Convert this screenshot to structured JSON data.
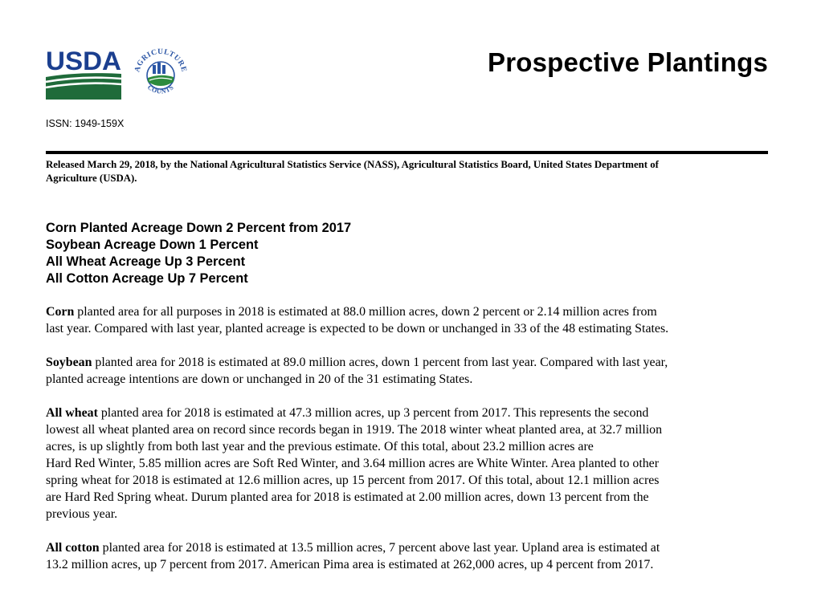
{
  "header": {
    "usda_logo_text": "USDA",
    "seal_text_top": "AGRICULTURE",
    "seal_text_bottom": "COUNTS",
    "title": "Prospective Plantings",
    "issn": "ISSN: 1949-159X"
  },
  "release": {
    "line1": "Released March 29, 2018, by the National Agricultural Statistics Service (NASS), Agricultural Statistics Board, United States Department of",
    "line2": "Agriculture (USDA)."
  },
  "headlines": [
    "Corn Planted Acreage Down 2 Percent from 2017",
    "Soybean Acreage Down 1 Percent",
    "All Wheat Acreage Up 3 Percent",
    "All Cotton Acreage Up 7 Percent"
  ],
  "paragraphs": {
    "corn": {
      "lead": "Corn",
      "line1": " planted area for all purposes in 2018 is estimated at 88.0 million acres, down 2 percent or 2.14 million acres from",
      "lines": [
        "last year. Compared with last year, planted acreage is expected to be down or unchanged in 33 of the 48 estimating States."
      ]
    },
    "soybean": {
      "lead": "Soybean",
      "line1": " planted area for 2018 is estimated at 89.0 million acres, down 1 percent from last year. Compared with last year,",
      "lines": [
        "planted acreage intentions are down or unchanged in 20 of the 31 estimating States."
      ]
    },
    "wheat": {
      "lead": "All wheat",
      "line1": " planted area for 2018 is estimated at 47.3 million acres, up 3 percent from 2017. This represents the second",
      "lines": [
        "lowest all wheat planted area on record since records began in 1919. The 2018 winter wheat planted area, at 32.7 million",
        "acres, is up slightly from both last year and the previous estimate. Of this total, about 23.2 million acres are",
        "Hard Red Winter, 5.85 million acres are Soft Red Winter, and 3.64 million acres are White Winter. Area planted to other",
        "spring wheat for 2018 is estimated at 12.6 million acres, up 15 percent from 2017. Of this total, about 12.1 million acres",
        "are Hard Red Spring wheat. Durum planted area for 2018 is estimated at 2.00 million acres, down 13 percent from the",
        "previous year."
      ]
    },
    "cotton": {
      "lead": "All cotton",
      "line1": " planted area for 2018 is estimated at 13.5 million acres, 7 percent above last year. Upland area is estimated at",
      "lines": [
        "13.2 million acres, up 7 percent from 2017. American Pima area is estimated at 262,000 acres, up 4 percent from 2017."
      ]
    }
  },
  "colors": {
    "usda_blue": "#1b3f8f",
    "usda_green": "#1f6b3a",
    "seal_blue": "#2a55a5",
    "seal_green": "#2e8b3d"
  }
}
